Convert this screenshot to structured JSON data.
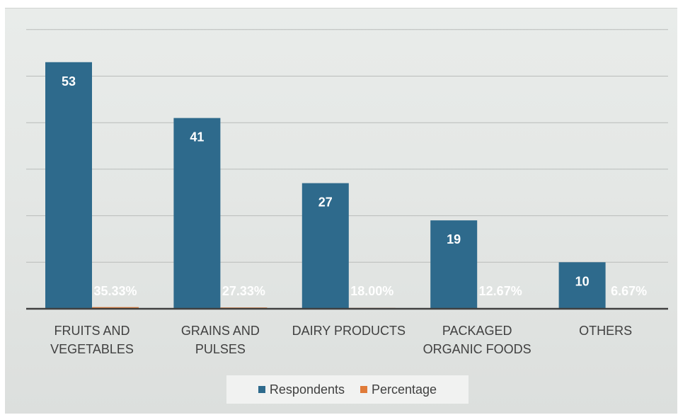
{
  "chart_data": {
    "type": "bar",
    "title": "",
    "xlabel": "",
    "ylabel": "",
    "categories": [
      "FRUITS AND\nVEGETABLES",
      "GRAINS AND\nPULSES",
      "DAIRY PRODUCTS",
      "PACKAGED\nORGANIC FOODS",
      "OTHERS"
    ],
    "series": [
      {
        "name": "Respondents",
        "color": "#2e6a8c",
        "values": [
          53,
          41,
          27,
          19,
          10
        ],
        "labels": [
          "53",
          "41",
          "27",
          "19",
          "10"
        ]
      },
      {
        "name": "Percentage",
        "color": "#e07b39",
        "values": [
          0.3533,
          0.2733,
          0.18,
          0.1267,
          0.0667
        ],
        "labels": [
          "35.33%",
          "27.33%",
          "18.00%",
          "12.67%",
          "6.67%"
        ]
      }
    ],
    "ylim": [
      0,
      60
    ],
    "y_ticks": [
      0,
      10,
      20,
      30,
      40,
      50,
      60
    ],
    "grid": true,
    "legend_position": "bottom"
  }
}
